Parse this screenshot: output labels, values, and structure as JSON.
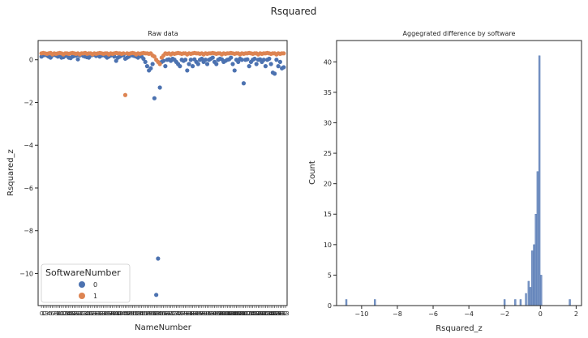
{
  "figure": {
    "suptitle": "Rsquared"
  },
  "colors": {
    "series0": "#4c72b0",
    "series1": "#dd8452",
    "hist": "#4c72b0",
    "axes": "#262626"
  },
  "chart_data": [
    {
      "type": "scatter",
      "title": "Raw data",
      "xlabel": "NameNumber",
      "ylabel": "Rsquared_z",
      "ylim": [
        -11.5,
        0.9
      ],
      "yticks": [
        0,
        -2,
        -4,
        -6,
        -8,
        -10
      ],
      "n_categories": 134,
      "xticklabels_note": "dense overlapping tick labels 0..134",
      "legend": {
        "title": "SoftwareNumber",
        "entries": [
          "0",
          "1"
        ],
        "placement": "lower-left"
      },
      "series": [
        {
          "name": "0",
          "x": [
            0,
            1,
            2,
            3,
            4,
            5,
            6,
            7,
            8,
            9,
            10,
            11,
            12,
            13,
            14,
            15,
            16,
            17,
            18,
            19,
            20,
            21,
            22,
            23,
            24,
            25,
            26,
            27,
            28,
            29,
            30,
            31,
            32,
            33,
            34,
            35,
            36,
            37,
            38,
            39,
            40,
            41,
            42,
            43,
            44,
            45,
            46,
            47,
            48,
            49,
            50,
            51,
            52,
            53,
            54,
            55,
            56,
            57,
            58,
            59,
            60,
            61,
            62,
            63,
            64,
            65,
            66,
            67,
            68,
            69,
            70,
            71,
            72,
            73,
            74,
            75,
            76,
            77,
            78,
            79,
            80,
            81,
            82,
            83,
            84,
            85,
            86,
            87,
            88,
            89,
            90,
            91,
            92,
            93,
            94,
            95,
            96,
            97,
            98,
            99,
            100,
            101,
            102,
            103,
            104,
            105,
            106,
            107,
            108,
            109,
            110,
            111,
            112,
            113,
            114,
            115,
            116,
            117,
            118,
            119,
            120,
            121,
            122,
            123,
            124,
            125,
            126,
            127,
            128,
            129,
            130,
            131,
            132,
            133
          ],
          "y": [
            0.15,
            0.2,
            0.25,
            0.2,
            0.15,
            0.1,
            0.2,
            0.25,
            0.2,
            0.15,
            0.22,
            0.1,
            0.12,
            0.18,
            0.2,
            0.1,
            0.08,
            0.15,
            0.18,
            0.2,
            0.02,
            0.2,
            0.25,
            0.18,
            0.15,
            0.12,
            0.1,
            0.2,
            0.22,
            0.25,
            0.18,
            0.2,
            0.15,
            0.2,
            0.22,
            0.18,
            0.1,
            0.15,
            0.2,
            0.25,
            0.15,
            -0.05,
            0.1,
            0.15,
            0.2,
            0.22,
            0.05,
            0.1,
            0.15,
            0.25,
            0.2,
            0.18,
            0.15,
            0.1,
            0.2,
            0.15,
            0.05,
            -0.1,
            -0.3,
            -0.5,
            -0.4,
            -0.2,
            -1.8,
            -11.0,
            -9.3,
            -1.3,
            -0.1,
            -0.05,
            -0.3,
            0.0,
            0.02,
            -0.05,
            0.05,
            0.0,
            -0.1,
            -0.2,
            -0.3,
            0.0,
            -0.05,
            0.0,
            -0.5,
            -0.2,
            0.0,
            -0.3,
            0.02,
            -0.1,
            -0.2,
            0.0,
            0.05,
            -0.1,
            0.0,
            -0.2,
            0.0,
            0.05,
            0.1,
            -0.1,
            -0.2,
            0.0,
            0.05,
            0.02,
            -0.1,
            -0.05,
            0.0,
            0.02,
            0.1,
            -0.2,
            -0.5,
            0.0,
            -0.1,
            0.05,
            0.0,
            -1.1,
            0.0,
            0.02,
            -0.3,
            -0.1,
            0.0,
            0.05,
            -0.2,
            0.0,
            0.02,
            -0.1,
            0.0,
            -0.3,
            0.0,
            0.05,
            -0.2,
            -0.6,
            -0.65,
            0.0,
            -0.3,
            -0.1,
            -0.4,
            -0.35
          ]
        },
        {
          "name": "1",
          "x": [
            0,
            1,
            2,
            3,
            4,
            5,
            6,
            7,
            8,
            9,
            10,
            11,
            12,
            13,
            14,
            15,
            16,
            17,
            18,
            19,
            20,
            21,
            22,
            23,
            24,
            25,
            26,
            27,
            28,
            29,
            30,
            31,
            32,
            33,
            34,
            35,
            36,
            37,
            38,
            39,
            40,
            41,
            42,
            43,
            44,
            45,
            46,
            47,
            48,
            49,
            50,
            51,
            52,
            53,
            54,
            55,
            56,
            57,
            58,
            59,
            60,
            61,
            62,
            63,
            64,
            65,
            66,
            67,
            68,
            69,
            70,
            71,
            72,
            73,
            74,
            75,
            76,
            77,
            78,
            79,
            80,
            81,
            82,
            83,
            84,
            85,
            86,
            87,
            88,
            89,
            90,
            91,
            92,
            93,
            94,
            95,
            96,
            97,
            98,
            99,
            100,
            101,
            102,
            103,
            104,
            105,
            106,
            107,
            108,
            109,
            110,
            111,
            112,
            113,
            114,
            115,
            116,
            117,
            118,
            119,
            120,
            121,
            122,
            123,
            124,
            125,
            126,
            127,
            128,
            129,
            130,
            131,
            132,
            133
          ],
          "y": [
            0.3,
            0.32,
            0.3,
            0.28,
            0.3,
            0.32,
            0.25,
            0.3,
            0.28,
            0.3,
            0.32,
            0.3,
            0.25,
            0.3,
            0.3,
            0.28,
            0.3,
            0.32,
            0.3,
            0.28,
            0.3,
            0.25,
            0.3,
            0.3,
            0.32,
            0.28,
            0.3,
            0.3,
            0.25,
            0.3,
            0.28,
            0.3,
            0.32,
            0.3,
            0.28,
            0.3,
            0.3,
            0.25,
            0.3,
            0.28,
            0.3,
            0.32,
            0.3,
            0.3,
            0.28,
            0.3,
            -1.65,
            0.3,
            0.28,
            0.3,
            0.32,
            0.3,
            0.25,
            0.3,
            0.28,
            0.3,
            0.32,
            0.3,
            0.3,
            0.28,
            0.3,
            0.2,
            0.15,
            0.0,
            -0.1,
            -0.2,
            0.1,
            0.2,
            0.3,
            0.28,
            0.3,
            0.25,
            0.3,
            0.28,
            0.3,
            0.32,
            0.3,
            0.28,
            0.3,
            0.3,
            0.25,
            0.3,
            0.28,
            0.3,
            0.32,
            0.3,
            0.3,
            0.28,
            0.3,
            0.25,
            0.3,
            0.28,
            0.3,
            0.3,
            0.32,
            0.3,
            0.28,
            0.3,
            0.3,
            0.25,
            0.3,
            0.28,
            0.3,
            0.3,
            0.32,
            0.3,
            0.28,
            0.3,
            0.3,
            0.25,
            0.3,
            0.28,
            0.3,
            0.3,
            0.32,
            0.3,
            0.28,
            0.3,
            0.3,
            0.25,
            0.3,
            0.28,
            0.3,
            0.3,
            0.32,
            0.3,
            0.28,
            0.3,
            0.3,
            0.25,
            0.3,
            0.28,
            0.3,
            0.3
          ]
        }
      ]
    },
    {
      "type": "bar",
      "subtype": "histogram",
      "title": "Aggegrated difference by software",
      "xlabel": "Rsquared_z",
      "ylabel": "Count",
      "xlim": [
        -11.4,
        2.3
      ],
      "ylim": [
        0,
        43.5
      ],
      "xticks": [
        -10,
        -8,
        -6,
        -4,
        -2,
        0,
        2
      ],
      "xticklabels": [
        "−10",
        "−8",
        "−6",
        "−4",
        "−2",
        "0",
        "2"
      ],
      "yticks": [
        0,
        5,
        10,
        15,
        20,
        25,
        30,
        35,
        40
      ],
      "bins": [
        {
          "x": -10.9,
          "count": 1
        },
        {
          "x": -9.3,
          "count": 1
        },
        {
          "x": -2.05,
          "count": 1
        },
        {
          "x": -1.45,
          "count": 1
        },
        {
          "x": -1.15,
          "count": 1
        },
        {
          "x": -0.85,
          "count": 2
        },
        {
          "x": -0.7,
          "count": 4
        },
        {
          "x": -0.6,
          "count": 3
        },
        {
          "x": -0.5,
          "count": 9
        },
        {
          "x": -0.4,
          "count": 10
        },
        {
          "x": -0.3,
          "count": 15
        },
        {
          "x": -0.2,
          "count": 22
        },
        {
          "x": -0.1,
          "count": 41
        },
        {
          "x": 0.0,
          "count": 5
        },
        {
          "x": 1.6,
          "count": 1
        }
      ],
      "bin_width": 0.09
    }
  ]
}
